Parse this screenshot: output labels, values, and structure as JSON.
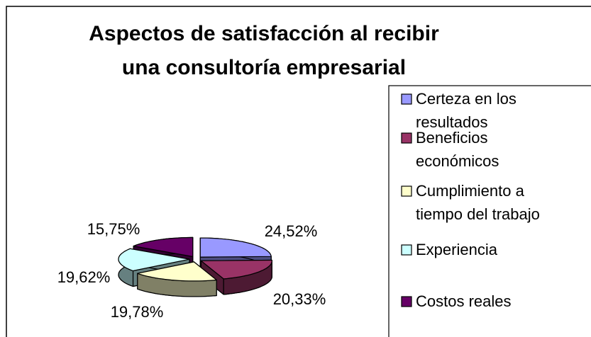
{
  "chart_data": {
    "type": "pie",
    "title": "Aspectos de satisfacción al recibir una consultoría empresarial",
    "categories": [
      "Certeza en los resultados",
      "Beneficios económicos",
      "Cumplimiento a tiempo del trabajo",
      "Experiencia",
      "Costos reales"
    ],
    "values": [
      24.52,
      20.33,
      19.78,
      19.62,
      15.75
    ],
    "value_labels": [
      "24,52%",
      "20,33%",
      "19,78%",
      "19,62%",
      "15,75%"
    ],
    "colors": [
      "#9999ff",
      "#993366",
      "#ffffcc",
      "#ccffff",
      "#660066"
    ],
    "legend": "right"
  }
}
